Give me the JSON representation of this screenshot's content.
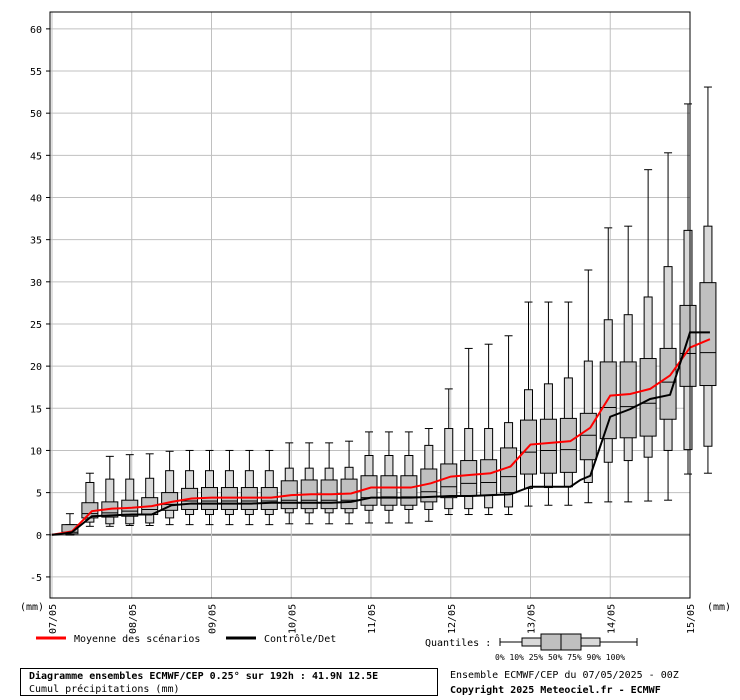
{
  "chart_data": {
    "type": "boxplot",
    "title": "Diagramme ensembles ECMWF/CEP 0.25° sur 192h : 41.9N 12.5E",
    "subtitle": "Cumul précipitations (mm)",
    "ylabel": "(mm)",
    "ylabel_right": "(mm)",
    "ylim": [
      -7.5,
      62
    ],
    "yticks": [
      -5,
      0,
      5,
      10,
      15,
      20,
      25,
      30,
      35,
      40,
      45,
      50,
      55,
      60
    ],
    "date_labels": [
      "07/05",
      "08/05",
      "09/05",
      "10/05",
      "11/05",
      "12/05",
      "13/05",
      "14/05",
      "15/05"
    ],
    "x_range": [
      0,
      32
    ],
    "boxes": [
      {
        "x": 1,
        "min": 0,
        "p10": 0,
        "p25": 0.1,
        "p50": 0.3,
        "p75": 1.2,
        "p90": 1.2,
        "max": 2.5
      },
      {
        "x": 2,
        "min": 1.0,
        "p10": 1.5,
        "p25": 2.0,
        "p50": 2.5,
        "p75": 3.8,
        "p90": 6.2,
        "max": 7.3
      },
      {
        "x": 3,
        "min": 1.0,
        "p10": 1.3,
        "p25": 2.1,
        "p50": 2.6,
        "p75": 3.9,
        "p90": 6.6,
        "max": 9.3
      },
      {
        "x": 4,
        "min": 1.1,
        "p10": 1.3,
        "p25": 2.2,
        "p50": 2.8,
        "p75": 4.1,
        "p90": 6.6,
        "max": 9.5
      },
      {
        "x": 5,
        "min": 1.1,
        "p10": 1.4,
        "p25": 2.4,
        "p50": 3.0,
        "p75": 4.4,
        "p90": 6.7,
        "max": 9.6
      },
      {
        "x": 6,
        "min": 1.2,
        "p10": 2.0,
        "p25": 2.9,
        "p50": 3.6,
        "p75": 5.0,
        "p90": 7.6,
        "max": 9.9
      },
      {
        "x": 7,
        "min": 1.2,
        "p10": 2.4,
        "p25": 3.0,
        "p50": 4.0,
        "p75": 5.5,
        "p90": 7.6,
        "max": 10.0
      },
      {
        "x": 8,
        "min": 1.2,
        "p10": 2.4,
        "p25": 3.0,
        "p50": 4.0,
        "p75": 5.6,
        "p90": 7.6,
        "max": 10.0
      },
      {
        "x": 9,
        "min": 1.2,
        "p10": 2.4,
        "p25": 3.0,
        "p50": 4.0,
        "p75": 5.6,
        "p90": 7.6,
        "max": 10.0
      },
      {
        "x": 10,
        "min": 1.2,
        "p10": 2.4,
        "p25": 3.0,
        "p50": 4.0,
        "p75": 5.6,
        "p90": 7.6,
        "max": 10.0
      },
      {
        "x": 11,
        "min": 1.2,
        "p10": 2.4,
        "p25": 3.0,
        "p50": 4.0,
        "p75": 5.6,
        "p90": 7.6,
        "max": 10.0
      },
      {
        "x": 12,
        "min": 1.3,
        "p10": 2.6,
        "p25": 3.1,
        "p50": 4.1,
        "p75": 6.4,
        "p90": 7.9,
        "max": 10.9
      },
      {
        "x": 13,
        "min": 1.3,
        "p10": 2.6,
        "p25": 3.1,
        "p50": 4.1,
        "p75": 6.5,
        "p90": 7.9,
        "max": 10.9
      },
      {
        "x": 14,
        "min": 1.3,
        "p10": 2.6,
        "p25": 3.1,
        "p50": 4.1,
        "p75": 6.5,
        "p90": 7.9,
        "max": 10.9
      },
      {
        "x": 15,
        "min": 1.3,
        "p10": 2.6,
        "p25": 3.1,
        "p50": 4.1,
        "p75": 6.6,
        "p90": 8.0,
        "max": 11.1
      },
      {
        "x": 16,
        "min": 1.4,
        "p10": 2.9,
        "p25": 3.5,
        "p50": 4.4,
        "p75": 7.0,
        "p90": 9.4,
        "max": 12.2
      },
      {
        "x": 17,
        "min": 1.4,
        "p10": 2.9,
        "p25": 3.5,
        "p50": 4.5,
        "p75": 7.0,
        "p90": 9.4,
        "max": 12.2
      },
      {
        "x": 18,
        "min": 1.4,
        "p10": 3.0,
        "p25": 3.5,
        "p50": 4.5,
        "p75": 7.0,
        "p90": 9.4,
        "max": 12.2
      },
      {
        "x": 19,
        "min": 1.6,
        "p10": 3.0,
        "p25": 3.9,
        "p50": 5.1,
        "p75": 7.8,
        "p90": 10.6,
        "max": 12.6
      },
      {
        "x": 20,
        "min": 2.4,
        "p10": 3.1,
        "p25": 4.4,
        "p50": 5.7,
        "p75": 8.4,
        "p90": 12.6,
        "max": 17.3
      },
      {
        "x": 21,
        "min": 2.4,
        "p10": 3.1,
        "p25": 4.6,
        "p50": 6.1,
        "p75": 8.8,
        "p90": 12.6,
        "max": 22.1
      },
      {
        "x": 22,
        "min": 2.4,
        "p10": 3.2,
        "p25": 4.7,
        "p50": 6.2,
        "p75": 8.9,
        "p90": 12.6,
        "max": 22.6
      },
      {
        "x": 23,
        "min": 2.4,
        "p10": 3.3,
        "p25": 5.0,
        "p50": 6.9,
        "p75": 10.3,
        "p90": 13.3,
        "max": 23.6
      },
      {
        "x": 24,
        "min": 3.4,
        "p10": 5.5,
        "p25": 7.2,
        "p50": 9.8,
        "p75": 13.6,
        "p90": 17.2,
        "max": 27.6
      },
      {
        "x": 25,
        "min": 3.5,
        "p10": 5.6,
        "p25": 7.3,
        "p50": 10.0,
        "p75": 13.7,
        "p90": 17.9,
        "max": 27.6
      },
      {
        "x": 26,
        "min": 3.5,
        "p10": 5.7,
        "p25": 7.4,
        "p50": 10.1,
        "p75": 13.8,
        "p90": 18.6,
        "max": 27.6
      },
      {
        "x": 27,
        "min": 3.8,
        "p10": 6.2,
        "p25": 8.9,
        "p50": 11.8,
        "p75": 14.4,
        "p90": 20.6,
        "max": 31.4
      },
      {
        "x": 28,
        "min": 3.9,
        "p10": 8.6,
        "p25": 11.4,
        "p50": 15.1,
        "p75": 20.5,
        "p90": 25.5,
        "max": 36.4
      },
      {
        "x": 29,
        "min": 3.9,
        "p10": 8.8,
        "p25": 11.5,
        "p50": 15.2,
        "p75": 20.5,
        "p90": 26.1,
        "max": 36.6
      },
      {
        "x": 30,
        "min": 4.0,
        "p10": 9.2,
        "p25": 11.7,
        "p50": 15.6,
        "p75": 20.9,
        "p90": 28.2,
        "max": 43.3
      },
      {
        "x": 31,
        "min": 4.1,
        "p10": 10.0,
        "p25": 13.7,
        "p50": 18.1,
        "p75": 22.1,
        "p90": 31.8,
        "max": 45.3
      },
      {
        "x": 32,
        "min": 7.2,
        "p10": 10.1,
        "p25": 17.6,
        "p50": 21.5,
        "p75": 27.2,
        "p90": 36.1,
        "max": 51.1
      },
      {
        "x": 33,
        "min": 7.3,
        "p10": 10.5,
        "p25": 17.7,
        "p50": 21.6,
        "p75": 29.9,
        "p90": 36.6,
        "max": 53.1
      }
    ],
    "series": [
      {
        "name": "Moyenne des scénarios",
        "color": "#ff0000",
        "x": [
          0,
          0.5,
          1,
          2,
          3,
          4,
          5,
          6,
          7,
          8,
          9,
          10,
          11,
          12,
          13,
          14,
          15,
          16,
          17,
          18,
          19,
          20,
          21,
          22,
          23,
          24,
          25,
          26,
          27,
          28,
          29,
          30,
          31,
          32,
          33
        ],
        "values": [
          0,
          0.2,
          0.4,
          2.8,
          3.1,
          3.2,
          3.4,
          3.9,
          4.3,
          4.4,
          4.4,
          4.4,
          4.4,
          4.7,
          4.8,
          4.8,
          4.9,
          5.6,
          5.6,
          5.6,
          6.1,
          6.9,
          7.1,
          7.3,
          8.1,
          10.7,
          10.9,
          11.1,
          12.7,
          16.5,
          16.7,
          17.3,
          18.9,
          22.2,
          23.2
        ]
      },
      {
        "name": "Contrôle/Det",
        "color": "#000000",
        "x": [
          0,
          0.5,
          1,
          2,
          3,
          4,
          5,
          6,
          7,
          8,
          9,
          10,
          11,
          12,
          13,
          14,
          15,
          16,
          17,
          18,
          19,
          20,
          21,
          22,
          23,
          24,
          25,
          26,
          26.5,
          27,
          28,
          29,
          30,
          31,
          32,
          33
        ],
        "values": [
          0,
          0.1,
          0.3,
          2.2,
          2.3,
          2.4,
          2.4,
          3.5,
          3.7,
          3.7,
          3.7,
          3.7,
          3.8,
          3.8,
          3.8,
          3.8,
          3.9,
          4.4,
          4.4,
          4.4,
          4.5,
          4.6,
          4.6,
          4.7,
          4.8,
          5.7,
          5.7,
          5.7,
          6.5,
          7.0,
          14.0,
          14.9,
          16.1,
          16.6,
          24.0,
          24.0
        ]
      }
    ],
    "legend": {
      "mean_label": "Moyenne des scénarios",
      "control_label": "Contrôle/Det",
      "quantiles_label": "Quantiles :",
      "quantile_ticks": "0%  10% 25% 50% 75% 90% 100%"
    },
    "grid": true
  },
  "footer": {
    "title": "Diagramme ensembles ECMWF/CEP 0.25° sur 192h : 41.9N 12.5E",
    "subtitle": "Cumul précipitations (mm)",
    "run_info": "Ensemble ECMWF/CEP du 07/05/2025 - 00Z",
    "copyright": "Copyright 2025 Meteociel.fr - ECMWF"
  },
  "colors": {
    "box_fill": "#c0c0c0",
    "box_inner_fill": "#d9d9d9",
    "grid": "#c0c0c0",
    "zero_line": "#808080",
    "mean": "#ff0000",
    "control": "#000000"
  }
}
